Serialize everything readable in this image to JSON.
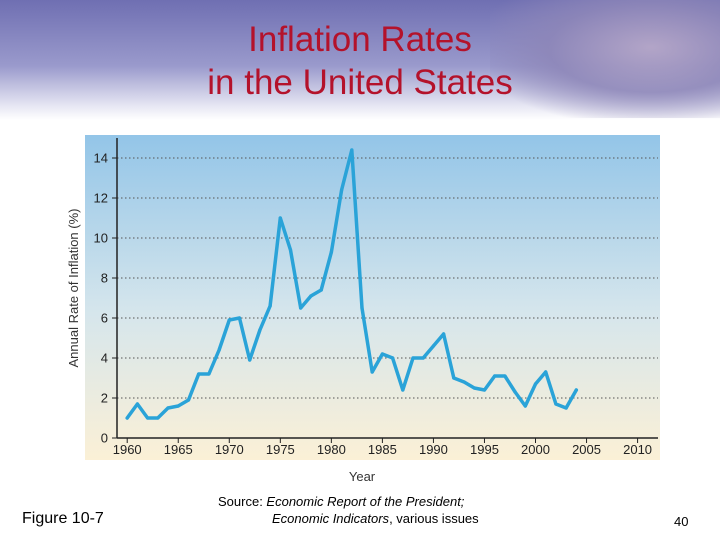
{
  "slide": {
    "title_line1": "Inflation Rates",
    "title_line2": "in the United States",
    "figure_label": "Figure 10-7",
    "source_prefix": "Source: ",
    "source_italic1": "Economic Report of the President;",
    "source_italic2": "Economic Indicators",
    "source_suffix": ", various issues",
    "page_number": "40"
  },
  "colors": {
    "title": "#b4122b",
    "line": "#2aa3d8",
    "plot_top": "#93c5e8",
    "plot_bottom": "#fbf0d6"
  },
  "chart_data": {
    "type": "line",
    "title": "",
    "xlabel": "Year",
    "ylabel": "Annual Rate of Inflation (%)",
    "xlim": [
      1959,
      2012
    ],
    "ylim": [
      0,
      15
    ],
    "xticks": [
      1960,
      1965,
      1970,
      1975,
      1980,
      1985,
      1990,
      1995,
      2000,
      2005,
      2010
    ],
    "yticks": [
      0,
      2,
      4,
      6,
      8,
      10,
      12,
      14
    ],
    "grid": "horizontal dotted",
    "series": [
      {
        "x": [
          1960,
          1961,
          1962,
          1963,
          1964,
          1965,
          1966,
          1967,
          1968,
          1969,
          1970,
          1971,
          1972,
          1973,
          1974,
          1975,
          1976,
          1977,
          1978,
          1979,
          1980,
          1981,
          1982,
          1983,
          1984,
          1985,
          1986,
          1987,
          1988,
          1989,
          1990,
          1991,
          1992,
          1993,
          1994,
          1995,
          1996,
          1997,
          1998,
          1999,
          2000,
          2001,
          2002,
          2003,
          2004
        ],
        "y": [
          1.0,
          1.7,
          1.0,
          1.0,
          1.5,
          1.6,
          1.9,
          3.2,
          3.2,
          4.4,
          5.9,
          6.0,
          3.9,
          5.4,
          6.6,
          11.0,
          9.4,
          6.5,
          7.1,
          7.4,
          9.3,
          12.4,
          14.4,
          6.5,
          3.3,
          4.2,
          4.0,
          2.4,
          4.0,
          4.0,
          4.6,
          5.2,
          3.0,
          2.8,
          2.5,
          2.4,
          3.1,
          3.1,
          2.3,
          1.6,
          2.7,
          3.3,
          1.7,
          1.5,
          2.4
        ]
      }
    ]
  }
}
